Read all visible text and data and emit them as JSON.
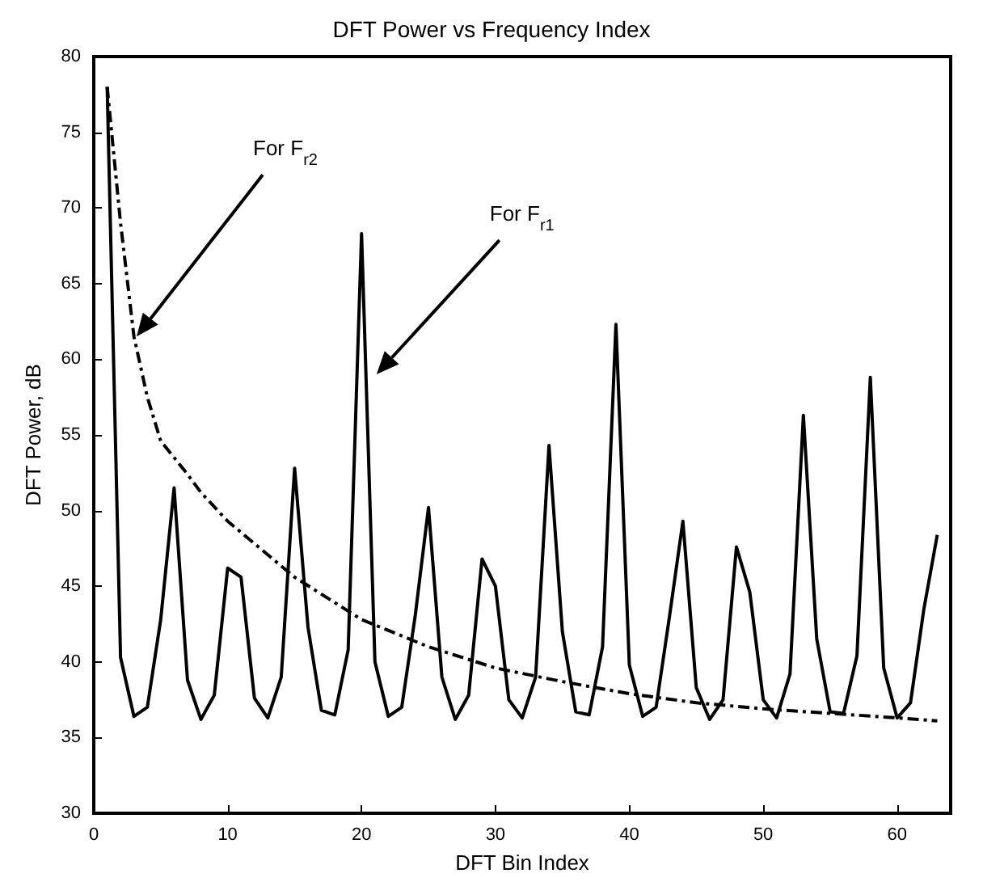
{
  "chart_data": {
    "type": "line",
    "title": "DFT Power vs Frequency Index",
    "xlabel": "DFT Bin Index",
    "ylabel": "DFT Power, dB",
    "xlim": [
      0,
      64
    ],
    "xticks": [
      0,
      10,
      20,
      30,
      40,
      50,
      60
    ],
    "ylim": [
      30,
      80
    ],
    "yticks": [
      30,
      35,
      40,
      45,
      50,
      55,
      60,
      65,
      70,
      75,
      80
    ],
    "grid": false,
    "marker": "none",
    "series": [
      {
        "color": "#000000",
        "line_style": "solid",
        "x": [
          1,
          2,
          3,
          4,
          5,
          6,
          7,
          8,
          9,
          10,
          11,
          12,
          13,
          14,
          15,
          16,
          17,
          18,
          19,
          20,
          21,
          22,
          23,
          24,
          25,
          26,
          27,
          28,
          29,
          30,
          31,
          32,
          33,
          34,
          35,
          36,
          37,
          38,
          39,
          40,
          41,
          42,
          43,
          44,
          45,
          46,
          47,
          48,
          49,
          50,
          51,
          52,
          53,
          54,
          55,
          56,
          57,
          58,
          59,
          60,
          61,
          62,
          63
        ],
        "values": [
          78,
          40.3,
          36.4,
          37,
          42.8,
          51.5,
          38.8,
          36.2,
          37.8,
          46.2,
          45.6,
          37.6,
          36.3,
          39,
          52.8,
          42.3,
          36.8,
          36.5,
          40.8,
          68.3,
          40,
          36.4,
          37,
          43,
          50.2,
          39,
          36.2,
          37.8,
          46.8,
          45,
          37.5,
          36.3,
          39,
          54.3,
          42,
          36.7,
          36.5,
          41,
          62.3,
          39.8,
          36.4,
          37,
          43,
          49.3,
          38.3,
          36.2,
          37.5,
          47.6,
          44.6,
          37.5,
          36.3,
          39.2,
          56.3,
          41.5,
          36.7,
          36.6,
          40.4,
          58.8,
          39.6,
          36.3,
          37.3,
          43.5,
          48.4
        ]
      },
      {
        "color": "#000000",
        "line_style": "dashed",
        "x": [
          1,
          2,
          3,
          4,
          5,
          6,
          7,
          8,
          10,
          15,
          20,
          25,
          30,
          35,
          40,
          45,
          50,
          55,
          60,
          63
        ],
        "values": [
          78,
          69,
          61.5,
          57.5,
          54.6,
          53.5,
          52.4,
          51.2,
          49.3,
          45.6,
          42.8,
          41,
          39.6,
          38.7,
          37.9,
          37.3,
          36.9,
          36.6,
          36.3,
          36.1
        ]
      }
    ],
    "annotations": [
      "For F$_{r2}$",
      "For F$_{r1}$"
    ]
  }
}
